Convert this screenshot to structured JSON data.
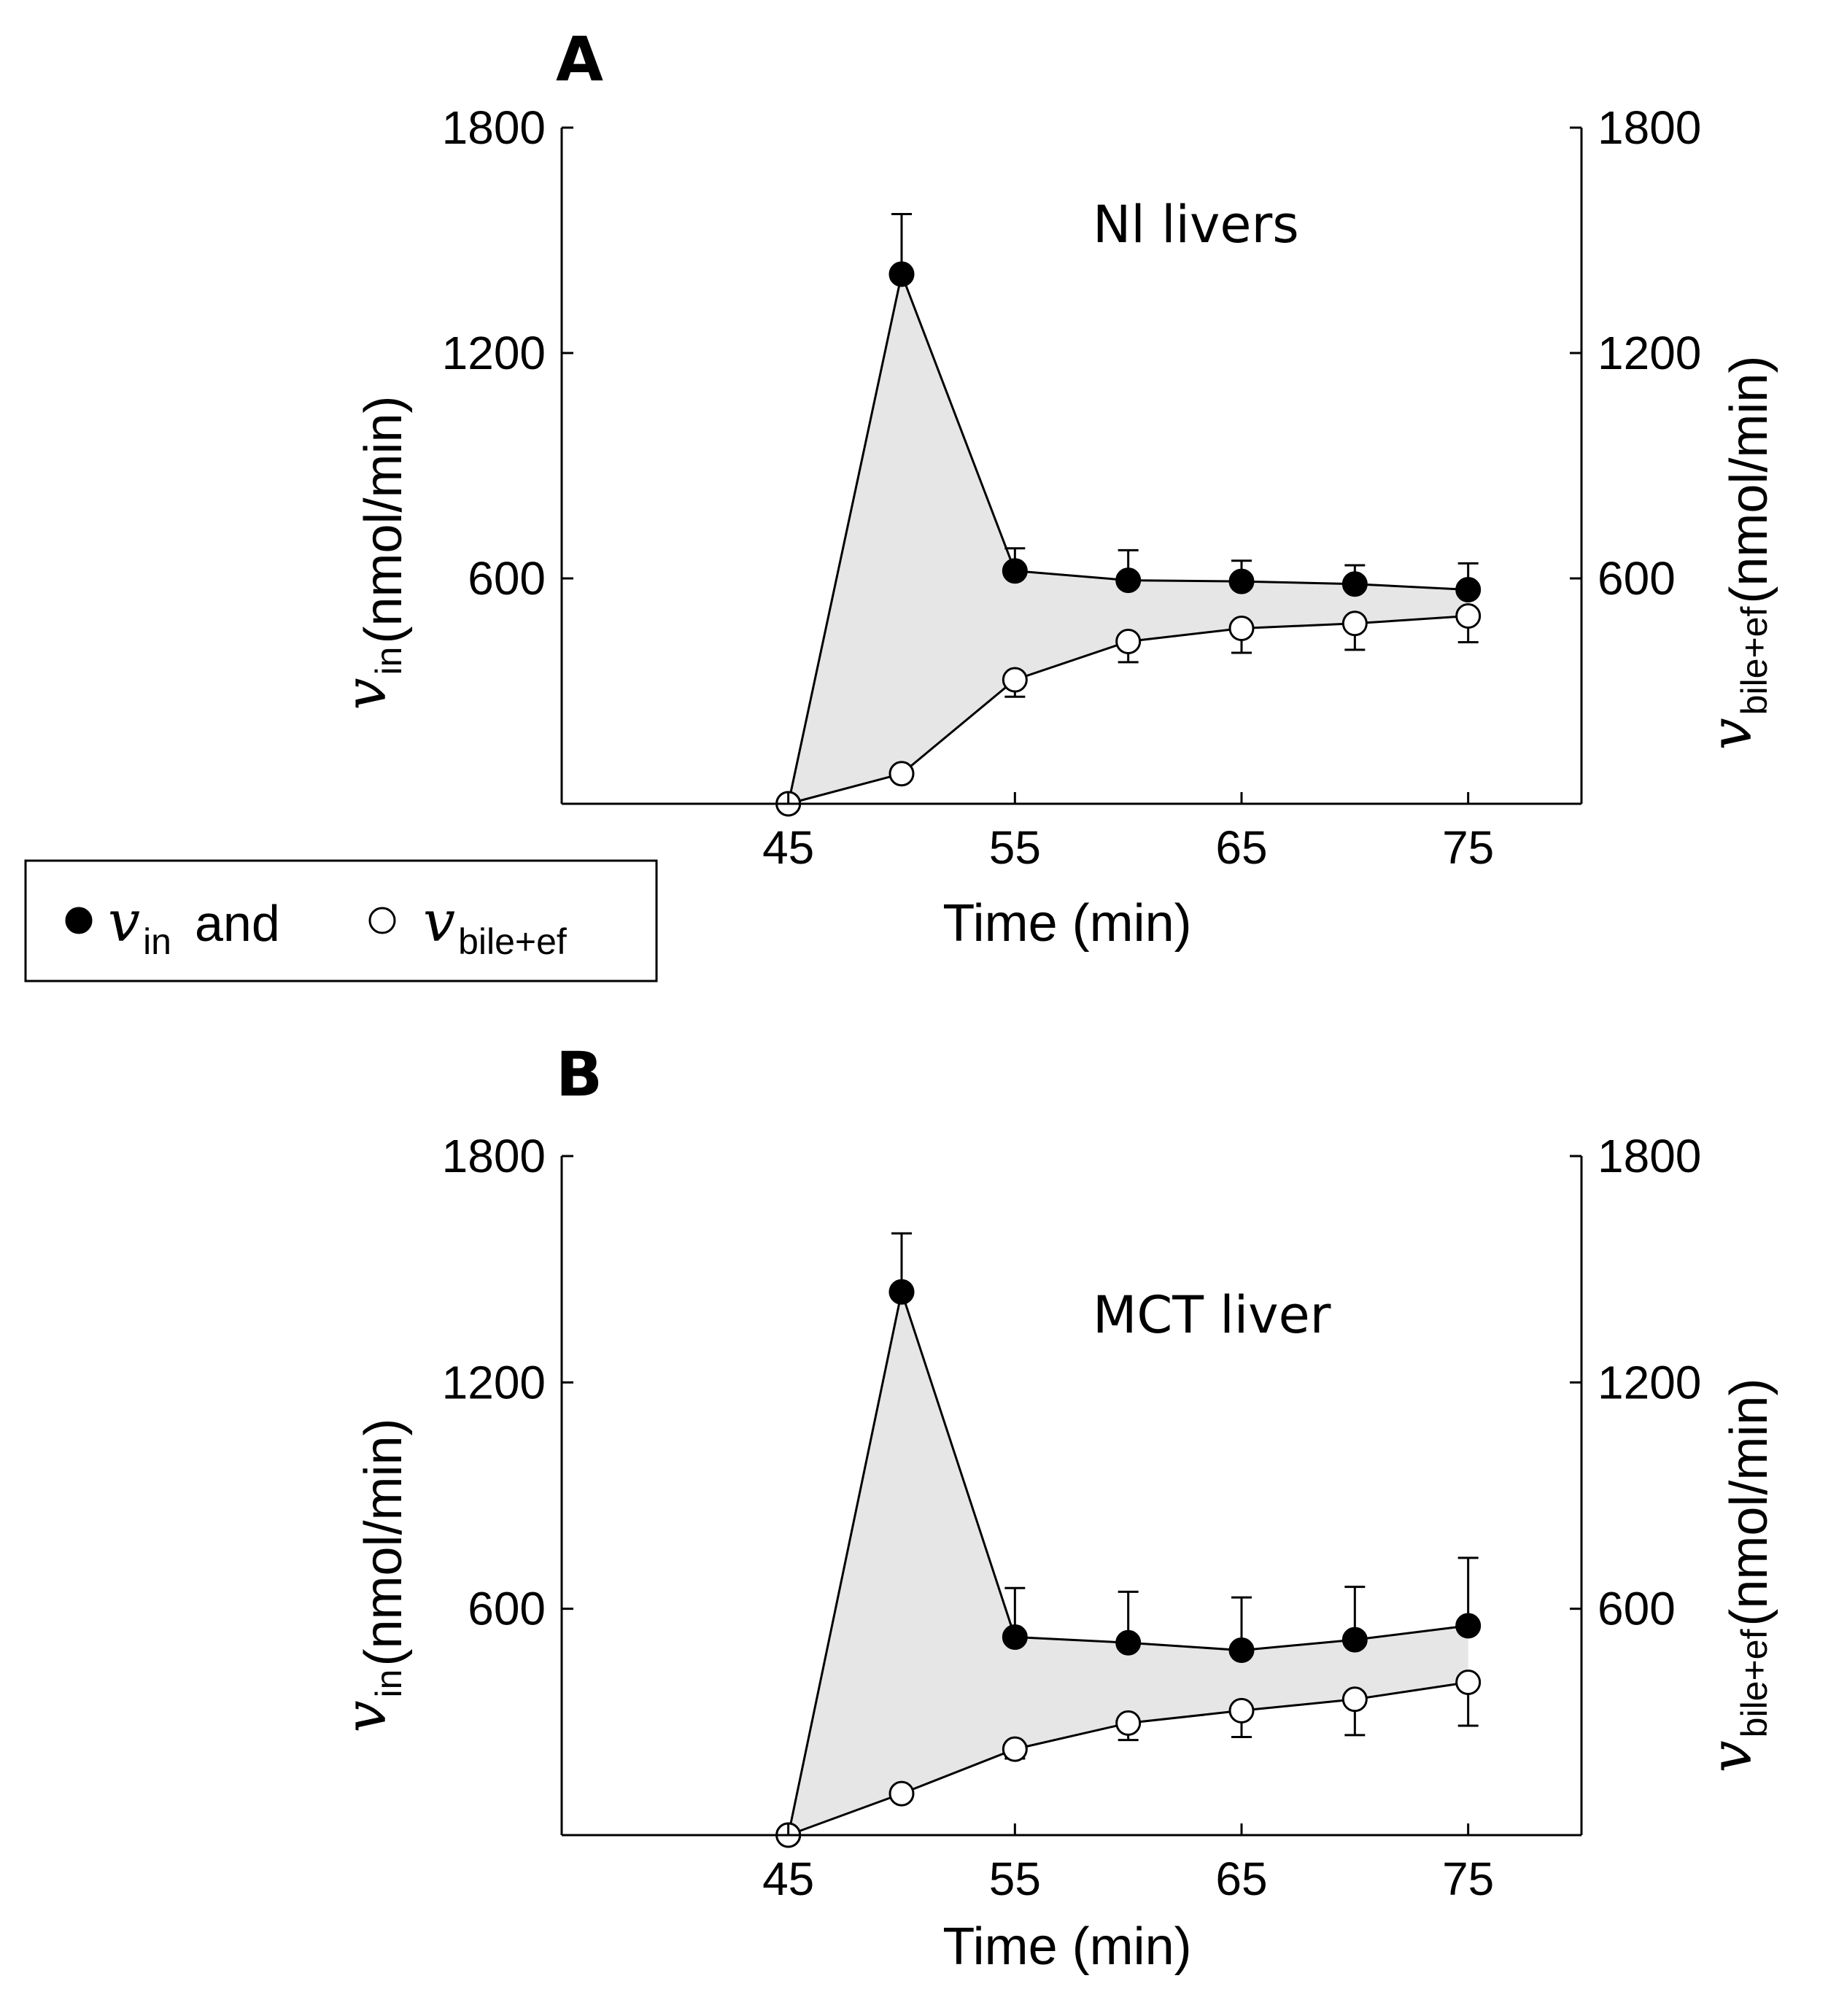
{
  "chart_data": [
    {
      "type": "line",
      "panel_label": "A",
      "annotation": "Nl livers",
      "xlabel": "Time (min)",
      "ylabel_left": {
        "symbol": "v",
        "sub": "in",
        "unit": "(nmol/min)"
      },
      "ylabel_right": {
        "symbol": "v",
        "sub": "bile+ef",
        "unit": "(nmol/min)"
      },
      "xlim": [
        35,
        80
      ],
      "ylim": [
        0,
        1800
      ],
      "xticks": [
        45,
        55,
        65,
        75
      ],
      "yticks": [
        600,
        1200,
        1800
      ],
      "shaded_between_series": true,
      "series": [
        {
          "name": "v_in",
          "marker": "filled",
          "x": [
            45,
            50,
            55,
            60,
            65,
            70,
            75
          ],
          "y": [
            0,
            1410,
            620,
            595,
            592,
            585,
            570
          ],
          "error_upper": [
            0,
            160,
            60,
            80,
            55,
            50,
            70
          ]
        },
        {
          "name": "v_bile+ef",
          "marker": "open",
          "x": [
            45,
            50,
            55,
            60,
            65,
            70,
            75
          ],
          "y": [
            0,
            80,
            330,
            432,
            467,
            480,
            500
          ],
          "error_lower": [
            0,
            0,
            45,
            55,
            65,
            70,
            70
          ]
        }
      ]
    },
    {
      "type": "line",
      "panel_label": "B",
      "annotation": "MCT liver",
      "xlabel": "Time (min)",
      "ylabel_left": {
        "symbol": "v",
        "sub": "in",
        "unit": "(nmol/min)"
      },
      "ylabel_right": {
        "symbol": "v",
        "sub": "bile+ef",
        "unit": "(nmol/min)"
      },
      "xlim": [
        35,
        80
      ],
      "ylim": [
        0,
        1800
      ],
      "xticks": [
        45,
        55,
        65,
        75
      ],
      "yticks": [
        600,
        1200,
        1800
      ],
      "shaded_between_series": true,
      "series": [
        {
          "name": "v_in",
          "marker": "filled",
          "x": [
            45,
            50,
            55,
            60,
            65,
            70,
            75
          ],
          "y": [
            0,
            1440,
            525,
            510,
            490,
            518,
            555
          ],
          "error_upper": [
            0,
            155,
            130,
            135,
            140,
            140,
            180
          ]
        },
        {
          "name": "v_bile+ef",
          "marker": "open",
          "x": [
            45,
            50,
            55,
            60,
            65,
            70,
            75
          ],
          "y": [
            0,
            110,
            228,
            297,
            330,
            360,
            405
          ],
          "error_lower": [
            0,
            0,
            25,
            45,
            70,
            95,
            115
          ]
        }
      ]
    }
  ],
  "legend": {
    "filled_symbol": "v",
    "filled_sub": "in",
    "connector": "and",
    "open_symbol": "v",
    "open_sub": "bile+ef"
  }
}
